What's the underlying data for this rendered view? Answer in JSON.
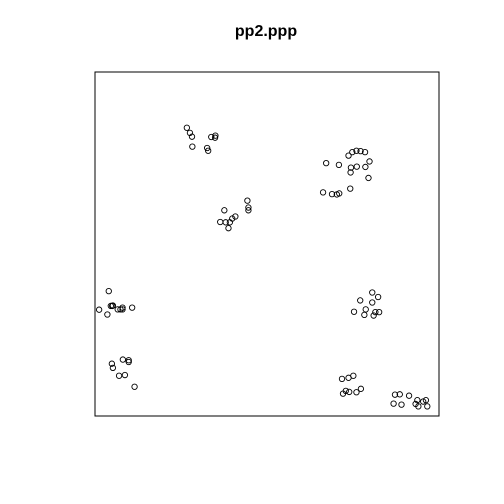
{
  "chart_data": {
    "type": "scatter",
    "title": "pp2.ppp",
    "xlabel": "",
    "ylabel": "",
    "xlim": [
      0,
      1
    ],
    "ylim": [
      0,
      1
    ],
    "grid": false,
    "point_style": "open-circle",
    "point_color": "#000000",
    "frame_color": "#000000",
    "points": [
      {
        "x": 0.267,
        "y": 0.838
      },
      {
        "x": 0.276,
        "y": 0.823
      },
      {
        "x": 0.282,
        "y": 0.812
      },
      {
        "x": 0.283,
        "y": 0.783
      },
      {
        "x": 0.326,
        "y": 0.779
      },
      {
        "x": 0.329,
        "y": 0.771
      },
      {
        "x": 0.338,
        "y": 0.811
      },
      {
        "x": 0.349,
        "y": 0.809
      },
      {
        "x": 0.35,
        "y": 0.815
      },
      {
        "x": 0.364,
        "y": 0.564
      },
      {
        "x": 0.38,
        "y": 0.563
      },
      {
        "x": 0.376,
        "y": 0.598
      },
      {
        "x": 0.392,
        "y": 0.563
      },
      {
        "x": 0.399,
        "y": 0.574
      },
      {
        "x": 0.408,
        "y": 0.58
      },
      {
        "x": 0.388,
        "y": 0.546
      },
      {
        "x": 0.446,
        "y": 0.598
      },
      {
        "x": 0.446,
        "y": 0.606
      },
      {
        "x": 0.443,
        "y": 0.626
      },
      {
        "x": 0.672,
        "y": 0.735
      },
      {
        "x": 0.709,
        "y": 0.73
      },
      {
        "x": 0.744,
        "y": 0.722
      },
      {
        "x": 0.737,
        "y": 0.757
      },
      {
        "x": 0.748,
        "y": 0.767
      },
      {
        "x": 0.76,
        "y": 0.771
      },
      {
        "x": 0.772,
        "y": 0.77
      },
      {
        "x": 0.785,
        "y": 0.767
      },
      {
        "x": 0.761,
        "y": 0.725
      },
      {
        "x": 0.786,
        "y": 0.724
      },
      {
        "x": 0.798,
        "y": 0.74
      },
      {
        "x": 0.795,
        "y": 0.692
      },
      {
        "x": 0.743,
        "y": 0.708
      },
      {
        "x": 0.663,
        "y": 0.65
      },
      {
        "x": 0.689,
        "y": 0.645
      },
      {
        "x": 0.703,
        "y": 0.644
      },
      {
        "x": 0.71,
        "y": 0.647
      },
      {
        "x": 0.742,
        "y": 0.661
      },
      {
        "x": 0.04,
        "y": 0.363
      },
      {
        "x": 0.046,
        "y": 0.32
      },
      {
        "x": 0.05,
        "y": 0.32
      },
      {
        "x": 0.052,
        "y": 0.321
      },
      {
        "x": 0.066,
        "y": 0.31
      },
      {
        "x": 0.074,
        "y": 0.31
      },
      {
        "x": 0.08,
        "y": 0.315
      },
      {
        "x": 0.08,
        "y": 0.31
      },
      {
        "x": 0.108,
        "y": 0.315
      },
      {
        "x": 0.012,
        "y": 0.309
      },
      {
        "x": 0.036,
        "y": 0.295
      },
      {
        "x": 0.081,
        "y": 0.164
      },
      {
        "x": 0.098,
        "y": 0.157
      },
      {
        "x": 0.098,
        "y": 0.162
      },
      {
        "x": 0.049,
        "y": 0.152
      },
      {
        "x": 0.052,
        "y": 0.14
      },
      {
        "x": 0.07,
        "y": 0.117
      },
      {
        "x": 0.087,
        "y": 0.119
      },
      {
        "x": 0.115,
        "y": 0.085
      },
      {
        "x": 0.806,
        "y": 0.359
      },
      {
        "x": 0.823,
        "y": 0.346
      },
      {
        "x": 0.806,
        "y": 0.33
      },
      {
        "x": 0.771,
        "y": 0.336
      },
      {
        "x": 0.787,
        "y": 0.31
      },
      {
        "x": 0.815,
        "y": 0.302
      },
      {
        "x": 0.826,
        "y": 0.302
      },
      {
        "x": 0.783,
        "y": 0.294
      },
      {
        "x": 0.81,
        "y": 0.292
      },
      {
        "x": 0.753,
        "y": 0.303
      },
      {
        "x": 0.718,
        "y": 0.108
      },
      {
        "x": 0.737,
        "y": 0.111
      },
      {
        "x": 0.751,
        "y": 0.117
      },
      {
        "x": 0.773,
        "y": 0.079
      },
      {
        "x": 0.76,
        "y": 0.069
      },
      {
        "x": 0.739,
        "y": 0.07
      },
      {
        "x": 0.721,
        "y": 0.065
      },
      {
        "x": 0.729,
        "y": 0.073
      },
      {
        "x": 0.872,
        "y": 0.062
      },
      {
        "x": 0.886,
        "y": 0.063
      },
      {
        "x": 0.913,
        "y": 0.059
      },
      {
        "x": 0.937,
        "y": 0.046
      },
      {
        "x": 0.962,
        "y": 0.046
      },
      {
        "x": 0.954,
        "y": 0.042
      },
      {
        "x": 0.932,
        "y": 0.035
      },
      {
        "x": 0.94,
        "y": 0.028
      },
      {
        "x": 0.966,
        "y": 0.028
      },
      {
        "x": 0.868,
        "y": 0.036
      },
      {
        "x": 0.891,
        "y": 0.033
      }
    ]
  }
}
